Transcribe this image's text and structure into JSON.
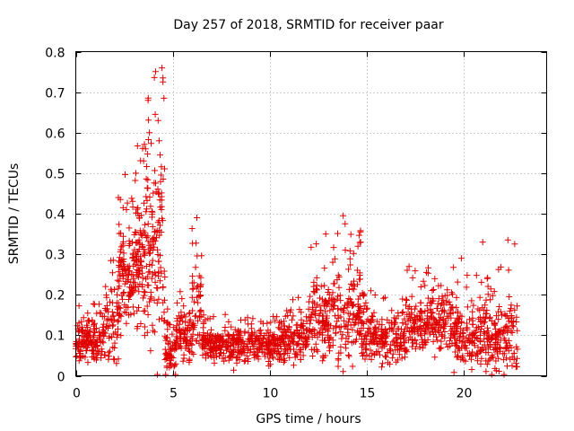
{
  "chart_data": {
    "type": "scatter",
    "title": "Day 257 of 2018, SRMTID for receiver paar",
    "xlabel": "GPS time / hours",
    "ylabel": "SRMTID / TECUs",
    "xlim": [
      0,
      24.3
    ],
    "ylim": [
      0,
      0.8
    ],
    "xticks": [
      0,
      5,
      10,
      15,
      20
    ],
    "xtick_labels": [
      "0",
      "5",
      "10",
      "15",
      "20"
    ],
    "yticks": [
      0,
      0.1,
      0.2,
      0.3,
      0.4,
      0.5,
      0.6,
      0.7,
      0.8
    ],
    "ytick_labels": [
      "0",
      "0.1",
      "0.2",
      "0.3",
      "0.4",
      "0.5",
      "0.6",
      "0.7",
      "0.8"
    ],
    "grid": true,
    "marker": "+",
    "color": "#e00000",
    "x_range": [
      0,
      22.8
    ],
    "segments": [
      {
        "x": [
          0.0,
          1.5
        ],
        "center": 0.08,
        "spread": 0.045,
        "count": 160
      },
      {
        "x": [
          1.5,
          2.2
        ],
        "center": 0.12,
        "spread": 0.08,
        "count": 60
      },
      {
        "x": [
          2.2,
          3.0
        ],
        "center": 0.24,
        "spread": 0.12,
        "count": 110
      },
      {
        "x": [
          3.0,
          3.6
        ],
        "center": 0.28,
        "spread": 0.14,
        "count": 90
      },
      {
        "x": [
          3.6,
          4.6
        ],
        "center": 0.33,
        "spread": 0.2,
        "count": 130
      },
      {
        "x": [
          4.6,
          5.2
        ],
        "center": 0.06,
        "spread": 0.05,
        "count": 60
      },
      {
        "x": [
          5.2,
          6.0
        ],
        "center": 0.09,
        "spread": 0.06,
        "count": 80
      },
      {
        "x": [
          6.0,
          6.5
        ],
        "center": 0.16,
        "spread": 0.1,
        "count": 50
      },
      {
        "x": [
          6.5,
          10.5
        ],
        "center": 0.075,
        "spread": 0.035,
        "count": 380
      },
      {
        "x": [
          10.5,
          12.0
        ],
        "center": 0.09,
        "spread": 0.05,
        "count": 150
      },
      {
        "x": [
          12.0,
          13.5
        ],
        "center": 0.14,
        "spread": 0.09,
        "count": 150
      },
      {
        "x": [
          13.5,
          14.8
        ],
        "center": 0.14,
        "spread": 0.1,
        "count": 130
      },
      {
        "x": [
          14.8,
          17.0
        ],
        "center": 0.09,
        "spread": 0.055,
        "count": 200
      },
      {
        "x": [
          17.0,
          19.5
        ],
        "center": 0.13,
        "spread": 0.07,
        "count": 230
      },
      {
        "x": [
          19.5,
          21.0
        ],
        "center": 0.1,
        "spread": 0.07,
        "count": 140
      },
      {
        "x": [
          21.0,
          22.8
        ],
        "center": 0.1,
        "spread": 0.08,
        "count": 170
      }
    ],
    "peaks": [
      {
        "x": 4.45,
        "y": 0.76
      },
      {
        "x": 4.5,
        "y": 0.735
      },
      {
        "x": 4.5,
        "y": 0.725
      },
      {
        "x": 4.55,
        "y": 0.685
      },
      {
        "x": 4.1,
        "y": 0.645
      },
      {
        "x": 4.25,
        "y": 0.63
      },
      {
        "x": 3.8,
        "y": 0.6
      },
      {
        "x": 4.3,
        "y": 0.58
      },
      {
        "x": 3.6,
        "y": 0.56
      },
      {
        "x": 4.35,
        "y": 0.545
      },
      {
        "x": 3.5,
        "y": 0.53
      },
      {
        "x": 3.1,
        "y": 0.5
      },
      {
        "x": 2.2,
        "y": 0.44
      },
      {
        "x": 2.3,
        "y": 0.435
      },
      {
        "x": 6.25,
        "y": 0.39
      },
      {
        "x": 13.8,
        "y": 0.395
      },
      {
        "x": 13.9,
        "y": 0.375
      },
      {
        "x": 12.9,
        "y": 0.35
      },
      {
        "x": 14.7,
        "y": 0.33
      },
      {
        "x": 21.0,
        "y": 0.33
      },
      {
        "x": 22.3,
        "y": 0.335
      },
      {
        "x": 22.65,
        "y": 0.325
      },
      {
        "x": 17.2,
        "y": 0.27
      },
      {
        "x": 19.9,
        "y": 0.29
      },
      {
        "x": 18.1,
        "y": 0.255
      }
    ]
  }
}
